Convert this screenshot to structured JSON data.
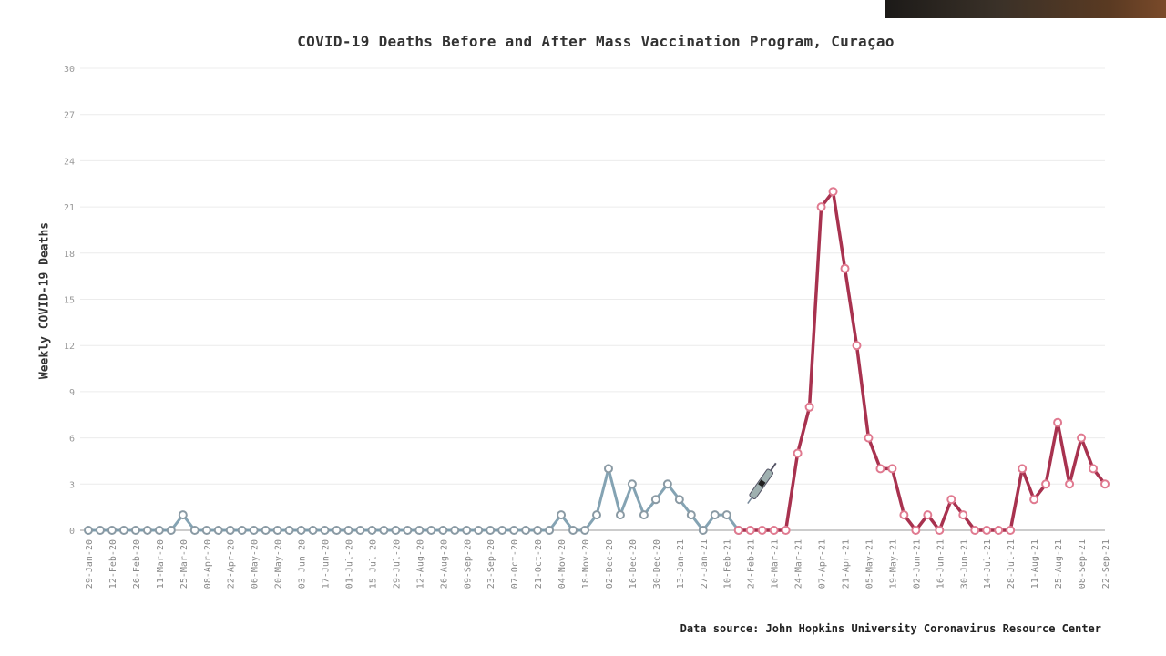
{
  "chart_data": {
    "type": "line",
    "title": "COVID-19 Deaths Before and After Mass Vaccination Program, Curaçao",
    "ylabel": "Weekly COVID-19 Deaths",
    "xlabel": "",
    "source": "Data source: John Hopkins University Coronavirus Resource Center",
    "ylim": [
      0,
      30
    ],
    "yticks": [
      0,
      3,
      6,
      9,
      12,
      15,
      18,
      21,
      24,
      27,
      30
    ],
    "grid": true,
    "x": [
      "29-Jan-20",
      "05-Feb-20",
      "12-Feb-20",
      "19-Feb-20",
      "26-Feb-20",
      "04-Mar-20",
      "11-Mar-20",
      "18-Mar-20",
      "25-Mar-20",
      "01-Apr-20",
      "08-Apr-20",
      "15-Apr-20",
      "22-Apr-20",
      "29-Apr-20",
      "06-May-20",
      "13-May-20",
      "20-May-20",
      "27-May-20",
      "03-Jun-20",
      "10-Jun-20",
      "17-Jun-20",
      "24-Jun-20",
      "01-Jul-20",
      "08-Jul-20",
      "15-Jul-20",
      "22-Jul-20",
      "29-Jul-20",
      "05-Aug-20",
      "12-Aug-20",
      "19-Aug-20",
      "26-Aug-20",
      "02-Sep-20",
      "09-Sep-20",
      "16-Sep-20",
      "23-Sep-20",
      "30-Sep-20",
      "07-Oct-20",
      "14-Oct-20",
      "21-Oct-20",
      "28-Oct-20",
      "04-Nov-20",
      "11-Nov-20",
      "18-Nov-20",
      "25-Nov-20",
      "02-Dec-20",
      "09-Dec-20",
      "16-Dec-20",
      "23-Dec-20",
      "30-Dec-20",
      "06-Jan-21",
      "13-Jan-21",
      "20-Jan-21",
      "27-Jan-21",
      "03-Feb-21",
      "10-Feb-21",
      "17-Feb-21",
      "24-Feb-21",
      "03-Mar-21",
      "10-Mar-21",
      "17-Mar-21",
      "24-Mar-21",
      "31-Mar-21",
      "07-Apr-21",
      "14-Apr-21",
      "21-Apr-21",
      "28-Apr-21",
      "05-May-21",
      "12-May-21",
      "19-May-21",
      "26-May-21",
      "02-Jun-21",
      "09-Jun-21",
      "16-Jun-21",
      "23-Jun-21",
      "30-Jun-21",
      "07-Jul-21",
      "14-Jul-21",
      "21-Jul-21",
      "28-Jul-21",
      "04-Aug-21",
      "11-Aug-21",
      "18-Aug-21",
      "25-Aug-21",
      "01-Sep-21",
      "08-Sep-21",
      "15-Sep-21",
      "22-Sep-21"
    ],
    "x_tick_every": 2,
    "series": [
      {
        "color": "#6f93a6",
        "marker_color": "#8a9aa4",
        "values": [
          0,
          0,
          0,
          0,
          0,
          0,
          0,
          0,
          1,
          0,
          0,
          0,
          0,
          0,
          0,
          0,
          0,
          0,
          0,
          0,
          0,
          0,
          0,
          0,
          0,
          0,
          0,
          0,
          0,
          0,
          0,
          0,
          0,
          0,
          0,
          0,
          0,
          0,
          0,
          0,
          1,
          0,
          0,
          1,
          4,
          1,
          3,
          1,
          2,
          3,
          2,
          1,
          0,
          1,
          1,
          0,
          null,
          null,
          null,
          null,
          null,
          null,
          null,
          null,
          null,
          null,
          null,
          null,
          null,
          null,
          null,
          null,
          null,
          null,
          null,
          null,
          null,
          null,
          null,
          null,
          null,
          null,
          null,
          null,
          null,
          null,
          null
        ]
      },
      {
        "color": "#a8324f",
        "marker_color": "#e07a90",
        "values": [
          null,
          null,
          null,
          null,
          null,
          null,
          null,
          null,
          null,
          null,
          null,
          null,
          null,
          null,
          null,
          null,
          null,
          null,
          null,
          null,
          null,
          null,
          null,
          null,
          null,
          null,
          null,
          null,
          null,
          null,
          null,
          null,
          null,
          null,
          null,
          null,
          null,
          null,
          null,
          null,
          null,
          null,
          null,
          null,
          null,
          null,
          null,
          null,
          null,
          null,
          null,
          null,
          null,
          null,
          null,
          0,
          0,
          0,
          0,
          0,
          5,
          8,
          21,
          22,
          17,
          12,
          6,
          4,
          4,
          1,
          0,
          1,
          0,
          2,
          1,
          0,
          0,
          0,
          0,
          4,
          2,
          3,
          7,
          3,
          6,
          4,
          3
        ]
      }
    ]
  },
  "icons": {
    "syringe": "syringe-icon"
  }
}
